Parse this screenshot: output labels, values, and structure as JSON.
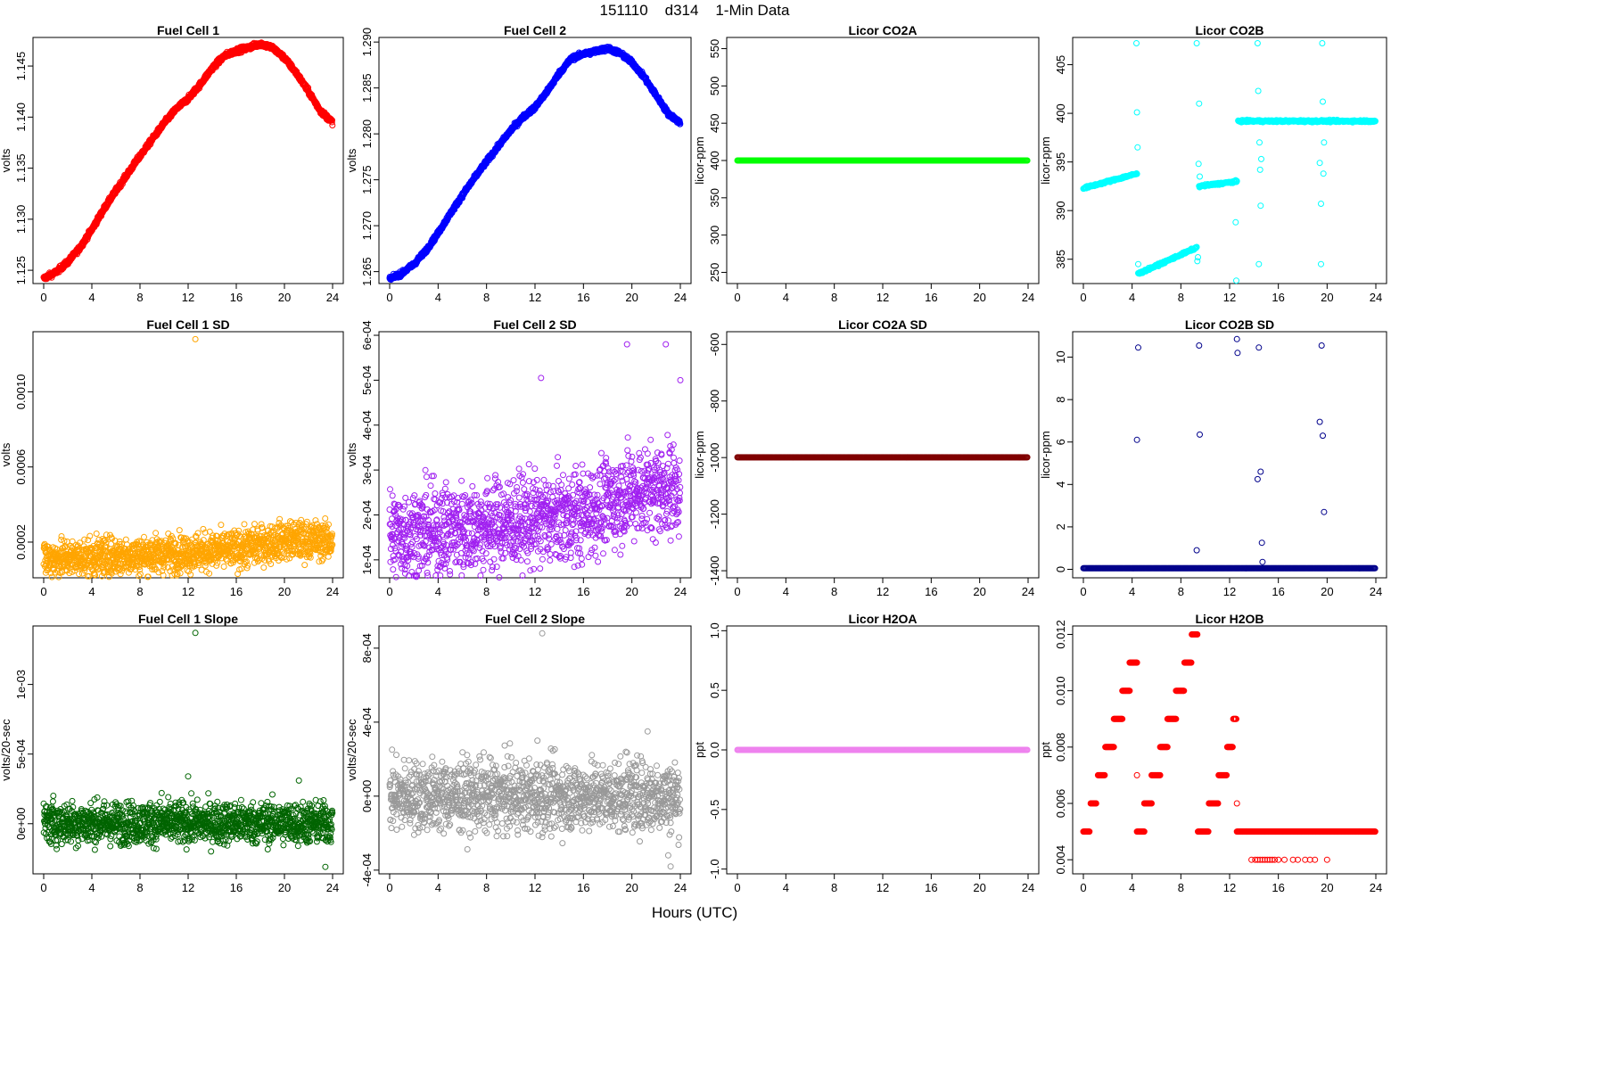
{
  "page": {
    "title": "151110    d314    1-Min Data",
    "x_caption": "Hours (UTC)"
  },
  "chart_data": [
    {
      "id": "fc1",
      "type": "scatter",
      "title": "Fuel Cell 1",
      "xlabel": "",
      "ylabel": "volts",
      "color": "#ff0000",
      "xlim": [
        0,
        24
      ],
      "ylim": [
        1.1237,
        1.1478
      ],
      "xticks": [
        0,
        4,
        8,
        12,
        16,
        20,
        24
      ],
      "yticks": [
        1.125,
        1.13,
        1.135,
        1.14,
        1.145
      ],
      "ytick_labels": [
        "1.125",
        "1.130",
        "1.135",
        "1.140",
        "1.145"
      ],
      "pattern": "curve",
      "curve": [
        [
          0,
          1.1242
        ],
        [
          1,
          1.1248
        ],
        [
          2,
          1.1258
        ],
        [
          3,
          1.1272
        ],
        [
          4,
          1.129
        ],
        [
          5,
          1.131
        ],
        [
          6,
          1.1328
        ],
        [
          7,
          1.1345
        ],
        [
          8,
          1.1362
        ],
        [
          9,
          1.1378
        ],
        [
          10,
          1.1394
        ],
        [
          11,
          1.1408
        ],
        [
          12,
          1.1418
        ],
        [
          13,
          1.1432
        ],
        [
          14,
          1.1448
        ],
        [
          15,
          1.146
        ],
        [
          16,
          1.1465
        ],
        [
          17,
          1.1468
        ],
        [
          18,
          1.1472
        ],
        [
          19,
          1.1468
        ],
        [
          20,
          1.1458
        ],
        [
          21,
          1.1443
        ],
        [
          22,
          1.1425
        ],
        [
          23,
          1.1406
        ],
        [
          24,
          1.1395
        ]
      ],
      "noise": 0.0003
    },
    {
      "id": "fc2",
      "type": "scatter",
      "title": "Fuel Cell 2",
      "xlabel": "",
      "ylabel": "volts",
      "color": "#0000ff",
      "xlim": [
        0,
        24
      ],
      "ylim": [
        1.2637,
        1.2905
      ],
      "xticks": [
        0,
        4,
        8,
        12,
        16,
        20,
        24
      ],
      "yticks": [
        1.265,
        1.27,
        1.275,
        1.28,
        1.285,
        1.29
      ],
      "ytick_labels": [
        "1.265",
        "1.270",
        "1.275",
        "1.280",
        "1.285",
        "1.290"
      ],
      "pattern": "curve",
      "curve": [
        [
          0,
          1.2642
        ],
        [
          1,
          1.2648
        ],
        [
          2,
          1.2658
        ],
        [
          3,
          1.2673
        ],
        [
          4,
          1.2692
        ],
        [
          5,
          1.2713
        ],
        [
          6,
          1.2733
        ],
        [
          7,
          1.2752
        ],
        [
          8,
          1.277
        ],
        [
          9,
          1.2787
        ],
        [
          10,
          1.2804
        ],
        [
          11,
          1.2818
        ],
        [
          12,
          1.2829
        ],
        [
          13,
          1.2846
        ],
        [
          14,
          1.2866
        ],
        [
          15,
          1.2882
        ],
        [
          16,
          1.2887
        ],
        [
          17,
          1.289
        ],
        [
          18,
          1.2893
        ],
        [
          19,
          1.2888
        ],
        [
          20,
          1.2878
        ],
        [
          21,
          1.2862
        ],
        [
          22,
          1.2842
        ],
        [
          23,
          1.2822
        ],
        [
          24,
          1.2812
        ]
      ],
      "noise": 0.0003
    },
    {
      "id": "co2a",
      "type": "scatter",
      "title": "Licor CO2A",
      "xlabel": "",
      "ylabel": "licor-ppm",
      "color": "#00ff00",
      "xlim": [
        0,
        24
      ],
      "ylim": [
        235,
        565
      ],
      "xticks": [
        0,
        4,
        8,
        12,
        16,
        20,
        24
      ],
      "yticks": [
        250,
        300,
        350,
        400,
        450,
        500,
        550
      ],
      "ytick_labels": [
        "250",
        "300",
        "350",
        "400",
        "450",
        "500",
        "550"
      ],
      "pattern": "constant",
      "value": 400
    },
    {
      "id": "co2b",
      "type": "scatter",
      "title": "Licor CO2B",
      "xlabel": "",
      "ylabel": "licor-ppm",
      "color": "#00ffff",
      "xlim": [
        0,
        24
      ],
      "ylim": [
        382.5,
        407.8
      ],
      "xticks": [
        0,
        4,
        8,
        12,
        16,
        20,
        24
      ],
      "yticks": [
        385,
        390,
        395,
        400,
        405
      ],
      "ytick_labels": [
        "385",
        "390",
        "395",
        "400",
        "405"
      ],
      "pattern": "segments",
      "segments": [
        [
          0,
          4.4,
          392.3,
          393.8
        ],
        [
          4.5,
          9.3,
          383.5,
          386.2
        ],
        [
          9.5,
          12.6,
          392.5,
          393
        ],
        [
          12.7,
          24,
          399.2,
          399.2
        ]
      ],
      "outliers": [
        [
          4.35,
          407.2
        ],
        [
          4.4,
          400.1
        ],
        [
          4.45,
          396.5
        ],
        [
          4.5,
          384.5
        ],
        [
          9.3,
          407.2
        ],
        [
          9.35,
          384.8
        ],
        [
          9.4,
          385.2
        ],
        [
          9.45,
          394.8
        ],
        [
          9.5,
          401.0
        ],
        [
          9.55,
          393.5
        ],
        [
          12.5,
          388.8
        ],
        [
          12.55,
          382.8
        ],
        [
          14.3,
          407.2
        ],
        [
          14.35,
          402.3
        ],
        [
          14.4,
          384.5
        ],
        [
          14.45,
          397.0
        ],
        [
          14.5,
          394.2
        ],
        [
          14.55,
          390.5
        ],
        [
          14.6,
          395.3
        ],
        [
          19.4,
          394.9
        ],
        [
          19.5,
          384.5
        ],
        [
          19.5,
          390.7
        ],
        [
          19.6,
          407.2
        ],
        [
          19.65,
          401.2
        ],
        [
          19.7,
          393.8
        ],
        [
          19.75,
          397.0
        ]
      ]
    },
    {
      "id": "fc1sd",
      "type": "scatter",
      "title": "Fuel Cell 1 SD",
      "xlabel": "",
      "ylabel": "volts",
      "color": "#ffa500",
      "xlim": [
        0,
        24
      ],
      "ylim": [
        1e-05,
        0.00132
      ],
      "xticks": [
        0,
        4,
        8,
        12,
        16,
        20,
        24
      ],
      "yticks": [
        0.0002,
        0.0006,
        0.001
      ],
      "ytick_labels": [
        "0.0002",
        "0.0006",
        "0.0010"
      ],
      "pattern": "noise",
      "noise_base": [
        [
          0,
          0.00011
        ],
        [
          8,
          0.00013
        ],
        [
          16,
          0.00016
        ],
        [
          20,
          0.00021
        ],
        [
          24,
          0.00021
        ]
      ],
      "noise": 5e-05,
      "outliers": [
        [
          12.6,
          0.00128
        ],
        [
          20,
          0.00027
        ],
        [
          23,
          0.00022
        ]
      ]
    },
    {
      "id": "fc2sd",
      "type": "scatter",
      "title": "Fuel Cell 2 SD",
      "xlabel": "",
      "ylabel": "volts",
      "color": "#a020f0",
      "xlim": [
        0,
        24
      ],
      "ylim": [
        6e-05,
        0.000608
      ],
      "xticks": [
        0,
        4,
        8,
        12,
        16,
        20,
        24
      ],
      "yticks": [
        0.0001,
        0.0002,
        0.0003,
        0.0004,
        0.0005,
        0.0006
      ],
      "ytick_labels": [
        "1e-04",
        "2e-04",
        "3e-04",
        "4e-04",
        "5e-04",
        "6e-04"
      ],
      "pattern": "noise",
      "noise_base": [
        [
          0,
          0.000155
        ],
        [
          8,
          0.000175
        ],
        [
          16,
          0.0002
        ],
        [
          20,
          0.00025
        ],
        [
          24,
          0.00026
        ]
      ],
      "noise": 5e-05,
      "outliers": [
        [
          12.5,
          0.000505
        ],
        [
          19.6,
          0.00058
        ],
        [
          22.8,
          0.00058
        ],
        [
          24,
          0.0005
        ]
      ]
    },
    {
      "id": "co2asd",
      "type": "scatter",
      "title": "Licor CO2A SD",
      "xlabel": "",
      "ylabel": "licor-ppm",
      "color": "#800000",
      "xlim": [
        0,
        24
      ],
      "ylim": [
        -1425,
        -555
      ],
      "xticks": [
        0,
        4,
        8,
        12,
        16,
        20,
        24
      ],
      "yticks": [
        -1400,
        -1200,
        -1000,
        -800,
        -600
      ],
      "ytick_labels": [
        "-1400",
        "-1200",
        "-1000",
        "-800",
        "-600"
      ],
      "pattern": "constant",
      "value": -999
    },
    {
      "id": "co2bsd",
      "type": "scatter",
      "title": "Licor CO2B SD",
      "xlabel": "",
      "ylabel": "licor-ppm",
      "color": "#00008b",
      "xlim": [
        0,
        24
      ],
      "ylim": [
        -0.4,
        11.2
      ],
      "xticks": [
        0,
        4,
        8,
        12,
        16,
        20,
        24
      ],
      "yticks": [
        0,
        2,
        4,
        6,
        8,
        10
      ],
      "ytick_labels": [
        "0",
        "2",
        "4",
        "6",
        "8",
        "10"
      ],
      "pattern": "constant",
      "value": 0.05,
      "outliers": [
        [
          4.4,
          6.1
        ],
        [
          4.5,
          10.45
        ],
        [
          9.5,
          10.55
        ],
        [
          9.55,
          6.35
        ],
        [
          9.3,
          0.9
        ],
        [
          12.6,
          10.85
        ],
        [
          12.65,
          10.2
        ],
        [
          14.4,
          10.45
        ],
        [
          14.3,
          4.25
        ],
        [
          14.55,
          4.6
        ],
        [
          14.65,
          1.25
        ],
        [
          14.7,
          0.35
        ],
        [
          19.4,
          6.95
        ],
        [
          19.55,
          10.55
        ],
        [
          19.65,
          6.3
        ],
        [
          19.75,
          2.7
        ]
      ]
    },
    {
      "id": "fc1slope",
      "type": "scatter",
      "title": "Fuel Cell 1 Slope",
      "xlabel": "",
      "ylabel": "volts/20-sec",
      "color": "#006400",
      "xlim": [
        0,
        24
      ],
      "ylim": [
        -0.00036,
        0.00142
      ],
      "xticks": [
        0,
        4,
        8,
        12,
        16,
        20,
        24
      ],
      "yticks": [
        0,
        0.0005,
        0.001
      ],
      "ytick_labels": [
        "0e+00",
        "5e-04",
        "1e-03"
      ],
      "pattern": "noise",
      "noise_base": [
        [
          0,
          5e-06
        ],
        [
          24,
          5e-06
        ]
      ],
      "noise": 7.5e-05,
      "outliers": [
        [
          12.6,
          0.00137
        ],
        [
          12,
          0.00034
        ],
        [
          21.2,
          0.00031
        ],
        [
          23.4,
          -0.00031
        ],
        [
          9.8,
          0.00022
        ],
        [
          0.8,
          0.0002
        ]
      ]
    },
    {
      "id": "fc2slope",
      "type": "scatter",
      "title": "Fuel Cell 2 Slope",
      "xlabel": "",
      "ylabel": "volts/20-sec",
      "color": "#999999",
      "xlim": [
        0,
        24
      ],
      "ylim": [
        -0.00042,
        0.00092
      ],
      "xticks": [
        0,
        4,
        8,
        12,
        16,
        20,
        24
      ],
      "yticks": [
        -0.0004,
        0,
        0.0004,
        0.0008
      ],
      "ytick_labels": [
        "-4e-04",
        "0e+00",
        "4e-04",
        "8e-04"
      ],
      "pattern": "noise",
      "noise_base": [
        [
          0,
          0.0
        ],
        [
          24,
          0.0
        ]
      ],
      "noise": 9.5e-05,
      "outliers": [
        [
          12.6,
          0.00088
        ],
        [
          12.2,
          0.0003
        ],
        [
          21.3,
          0.00035
        ],
        [
          23.2,
          -0.00038
        ],
        [
          23,
          -0.00032
        ],
        [
          19.5,
          0.00024
        ]
      ]
    },
    {
      "id": "h2oa",
      "type": "scatter",
      "title": "Licor H2OA",
      "xlabel": "",
      "ylabel": "ppt",
      "color": "#ee82ee",
      "xlim": [
        0,
        24
      ],
      "ylim": [
        -1.04,
        1.04
      ],
      "xticks": [
        0,
        4,
        8,
        12,
        16,
        20,
        24
      ],
      "yticks": [
        -1,
        -0.5,
        0,
        0.5,
        1
      ],
      "ytick_labels": [
        "-1.0",
        "-0.5",
        "0.0",
        "0.5",
        "1.0"
      ],
      "pattern": "constant",
      "value": 0
    },
    {
      "id": "h2ob",
      "type": "scatter",
      "title": "Licor H2OB",
      "xlabel": "",
      "ylabel": "ppt",
      "color": "#ff0000",
      "xlim": [
        0,
        24
      ],
      "ylim": [
        0.0035,
        0.0123
      ],
      "xticks": [
        0,
        4,
        8,
        12,
        16,
        20,
        24
      ],
      "yticks": [
        0.004,
        0.006,
        0.008,
        0.01,
        0.012
      ],
      "ytick_labels": [
        "0.004",
        "0.006",
        "0.008",
        "0.010",
        "0.012"
      ],
      "pattern": "steps",
      "steps": [
        [
          0,
          0.5,
          0.005
        ],
        [
          0.6,
          1.1,
          0.006
        ],
        [
          1.2,
          1.8,
          0.007
        ],
        [
          1.8,
          2.5,
          0.008
        ],
        [
          2.5,
          3.2,
          0.009
        ],
        [
          3.2,
          3.8,
          0.01
        ],
        [
          3.8,
          4.4,
          0.011
        ],
        [
          4.4,
          5.0,
          0.005
        ],
        [
          5.0,
          5.6,
          0.006
        ],
        [
          5.6,
          6.3,
          0.007
        ],
        [
          6.3,
          6.9,
          0.008
        ],
        [
          6.9,
          7.6,
          0.009
        ],
        [
          7.6,
          8.3,
          0.01
        ],
        [
          8.3,
          8.9,
          0.011
        ],
        [
          8.9,
          9.4,
          0.012
        ],
        [
          9.4,
          10.3,
          0.005
        ],
        [
          10.3,
          11.1,
          0.006
        ],
        [
          11.1,
          11.8,
          0.007
        ],
        [
          11.8,
          12.3,
          0.008
        ],
        [
          12.3,
          12.6,
          0.009
        ],
        [
          12.6,
          24,
          0.005
        ]
      ],
      "outliers": [
        [
          4.4,
          0.007
        ],
        [
          12.6,
          0.006
        ],
        [
          13.8,
          0.004
        ],
        [
          14.1,
          0.004
        ],
        [
          14.3,
          0.004
        ],
        [
          14.5,
          0.004
        ],
        [
          14.7,
          0.004
        ],
        [
          14.9,
          0.004
        ],
        [
          15.1,
          0.004
        ],
        [
          15.3,
          0.004
        ],
        [
          15.5,
          0.004
        ],
        [
          15.7,
          0.004
        ],
        [
          16.0,
          0.004
        ],
        [
          16.5,
          0.004
        ],
        [
          17.2,
          0.004
        ],
        [
          17.6,
          0.004
        ],
        [
          18.2,
          0.004
        ],
        [
          18.6,
          0.004
        ],
        [
          19.0,
          0.004
        ],
        [
          20.0,
          0.004
        ]
      ]
    }
  ]
}
